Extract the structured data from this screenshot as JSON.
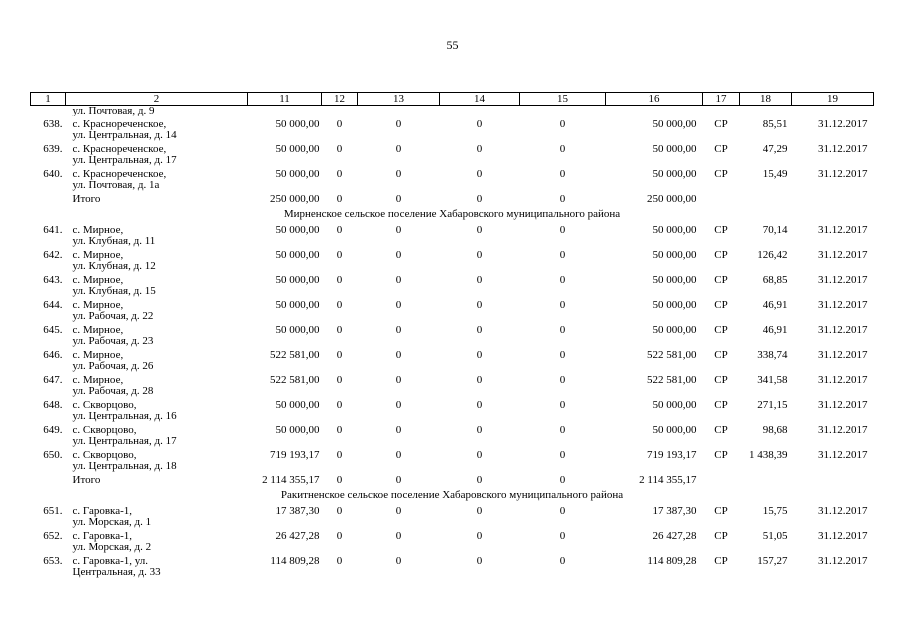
{
  "page_number": "55",
  "headers": [
    "1",
    "2",
    "11",
    "12",
    "13",
    "14",
    "15",
    "16",
    "17",
    "18",
    "19"
  ],
  "carryover": "ул. Почтовая, д. 9",
  "groups": [
    {
      "items": [
        {
          "n": "638.",
          "addr1": "с. Красноречен­ское,",
          "addr2": "ул. Центральная, д. 14",
          "c11": "50 000,00",
          "c12": "0",
          "c13": "0",
          "c14": "0",
          "c15": "0",
          "c16": "50 000,00",
          "c17": "СР",
          "c18": "85,51",
          "c19": "31.12.2017"
        },
        {
          "n": "639.",
          "addr1": "с. Красноречен­ское,",
          "addr2": "ул. Центральная, д. 17",
          "c11": "50 000,00",
          "c12": "0",
          "c13": "0",
          "c14": "0",
          "c15": "0",
          "c16": "50 000,00",
          "c17": "СР",
          "c18": "47,29",
          "c19": "31.12.2017"
        },
        {
          "n": "640.",
          "addr1": "с. Красноречен­ское,",
          "addr2": "ул. Почтовая, д. 1а",
          "c11": "50 000,00",
          "c12": "0",
          "c13": "0",
          "c14": "0",
          "c15": "0",
          "c16": "50 000,00",
          "c17": "СР",
          "c18": "15,49",
          "c19": "31.12.2017"
        }
      ],
      "total": {
        "label": "Итого",
        "c11": "250 000,00",
        "c12": "0",
        "c13": "0",
        "c14": "0",
        "c15": "0",
        "c16": "250 000,00"
      }
    },
    {
      "section": "Мирненское сельское поселение Хабаровского муниципального района",
      "items": [
        {
          "n": "641.",
          "addr1": "с. Мирное,",
          "addr2": "ул. Клубная, д. 11",
          "c11": "50 000,00",
          "c12": "0",
          "c13": "0",
          "c14": "0",
          "c15": "0",
          "c16": "50 000,00",
          "c17": "СР",
          "c18": "70,14",
          "c19": "31.12.2017"
        },
        {
          "n": "642.",
          "addr1": "с. Мирное,",
          "addr2": "ул. Клубная, д. 12",
          "c11": "50 000,00",
          "c12": "0",
          "c13": "0",
          "c14": "0",
          "c15": "0",
          "c16": "50 000,00",
          "c17": "СР",
          "c18": "126,42",
          "c19": "31.12.2017"
        },
        {
          "n": "643.",
          "addr1": "с. Мирное,",
          "addr2": "ул. Клубная, д. 15",
          "c11": "50 000,00",
          "c12": "0",
          "c13": "0",
          "c14": "0",
          "c15": "0",
          "c16": "50 000,00",
          "c17": "СР",
          "c18": "68,85",
          "c19": "31.12.2017"
        },
        {
          "n": "644.",
          "addr1": "с. Мирное,",
          "addr2": "ул. Рабочая, д. 22",
          "c11": "50 000,00",
          "c12": "0",
          "c13": "0",
          "c14": "0",
          "c15": "0",
          "c16": "50 000,00",
          "c17": "СР",
          "c18": "46,91",
          "c19": "31.12.2017"
        },
        {
          "n": "645.",
          "addr1": "с. Мирное,",
          "addr2": "ул. Рабочая, д. 23",
          "c11": "50 000,00",
          "c12": "0",
          "c13": "0",
          "c14": "0",
          "c15": "0",
          "c16": "50 000,00",
          "c17": "СР",
          "c18": "46,91",
          "c19": "31.12.2017"
        },
        {
          "n": "646.",
          "addr1": "с. Мирное,",
          "addr2": "ул. Рабочая, д. 26",
          "c11": "522 581,00",
          "c12": "0",
          "c13": "0",
          "c14": "0",
          "c15": "0",
          "c16": "522 581,00",
          "c17": "СР",
          "c18": "338,74",
          "c19": "31.12.2017"
        },
        {
          "n": "647.",
          "addr1": "с. Мирное,",
          "addr2": "ул. Рабочая, д. 28",
          "c11": "522 581,00",
          "c12": "0",
          "c13": "0",
          "c14": "0",
          "c15": "0",
          "c16": "522 581,00",
          "c17": "СР",
          "c18": "341,58",
          "c19": "31.12.2017"
        },
        {
          "n": "648.",
          "addr1": "с. Скворцово,",
          "addr2": "ул. Центральная, д. 16",
          "c11": "50 000,00",
          "c12": "0",
          "c13": "0",
          "c14": "0",
          "c15": "0",
          "c16": "50 000,00",
          "c17": "СР",
          "c18": "271,15",
          "c19": "31.12.2017"
        },
        {
          "n": "649.",
          "addr1": "с. Скворцово,",
          "addr2": "ул. Центральная, д. 17",
          "c11": "50 000,00",
          "c12": "0",
          "c13": "0",
          "c14": "0",
          "c15": "0",
          "c16": "50 000,00",
          "c17": "СР",
          "c18": "98,68",
          "c19": "31.12.2017"
        },
        {
          "n": "650.",
          "addr1": "с. Скворцово,",
          "addr2": "ул. Центральная, д. 18",
          "c11": "719 193,17",
          "c12": "0",
          "c13": "0",
          "c14": "0",
          "c15": "0",
          "c16": "719 193,17",
          "c17": "СР",
          "c18": "1 438,39",
          "c19": "31.12.2017"
        }
      ],
      "total": {
        "label": "Итого",
        "c11": "2 114 355,17",
        "c12": "0",
        "c13": "0",
        "c14": "0",
        "c15": "0",
        "c16": "2 114 355,17"
      }
    },
    {
      "section": "Ракитненское сельское поселение Хабаровского муниципального района",
      "items": [
        {
          "n": "651.",
          "addr1": "с. Гаровка-1,",
          "addr2": "ул. Морская, д. 1",
          "c11": "17 387,30",
          "c12": "0",
          "c13": "0",
          "c14": "0",
          "c15": "0",
          "c16": "17 387,30",
          "c17": "СР",
          "c18": "15,75",
          "c19": "31.12.2017"
        },
        {
          "n": "652.",
          "addr1": "с. Гаровка-1,",
          "addr2": "ул. Морская, д. 2",
          "c11": "26 427,28",
          "c12": "0",
          "c13": "0",
          "c14": "0",
          "c15": "0",
          "c16": "26 427,28",
          "c17": "СР",
          "c18": "51,05",
          "c19": "31.12.2017"
        },
        {
          "n": "653.",
          "addr1": "с. Гаровка-1, ул.",
          "addr2": "Центральная, д. 33",
          "c11": "114 809,28",
          "c12": "0",
          "c13": "0",
          "c14": "0",
          "c15": "0",
          "c16": "114 809,28",
          "c17": "СР",
          "c18": "157,27",
          "c19": "31.12.2017"
        }
      ]
    }
  ]
}
